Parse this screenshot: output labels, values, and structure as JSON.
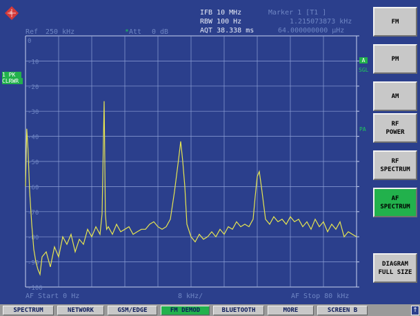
{
  "header": {
    "ref_label": "Ref",
    "ref_value": "250 kHz",
    "att_marker": "*",
    "att_label": "Att",
    "att_value": "0 dB",
    "ifb": "IFB 10 MHz",
    "rbw": "RBW 100 Hz",
    "aqt": "AQT 38.338 ms",
    "marker_title": "Marker 1 [T1 ]",
    "marker_freq": "1.215073873 kHz",
    "marker_level": "64.000000000 µHz"
  },
  "left_labels": {
    "trace_mode": "1 PK",
    "trace_clear": "CLRWR"
  },
  "right_labels": {
    "a_badge": "A",
    "sgl": "SGL",
    "pa": "PA"
  },
  "footer": {
    "start": "AF Start 0 Hz",
    "span": "8 kHz/",
    "stop": "AF Stop 80 kHz"
  },
  "chart_data": {
    "type": "line",
    "ytick_labels": [
      "0",
      "-10",
      "-20",
      "-30",
      "-40",
      "-50",
      "-60",
      "-70",
      "-80",
      "-90",
      "-100"
    ],
    "ylim": [
      -100,
      0
    ],
    "xlim": [
      0,
      80
    ],
    "x_unit": "kHz",
    "grid": true,
    "series": [
      {
        "x": [
          0,
          0.3,
          0.6,
          1,
          1.5,
          2,
          2.5,
          3,
          3.5,
          4,
          5,
          6,
          7,
          8,
          9,
          10,
          11,
          12,
          13,
          14,
          15,
          16,
          17,
          18,
          18.5,
          19,
          19.3,
          19.6,
          20,
          21,
          22,
          23,
          24,
          25,
          26,
          27,
          28,
          29,
          30,
          31,
          32,
          33,
          34,
          35,
          36,
          37,
          37.5,
          38,
          38.5,
          39,
          40,
          41,
          42,
          43,
          44,
          45,
          46,
          47,
          48,
          49,
          50,
          51,
          52,
          53,
          54,
          55,
          55.5,
          56,
          56.5,
          57,
          58,
          59,
          60,
          61,
          62,
          63,
          64,
          65,
          66,
          67,
          68,
          69,
          70,
          71,
          72,
          73,
          74,
          75,
          76,
          77,
          78,
          79,
          80
        ],
        "y": [
          -60,
          -37,
          -45,
          -62,
          -75,
          -85,
          -90,
          -93,
          -95,
          -88,
          -86,
          -92,
          -84,
          -88,
          -80,
          -83,
          -79,
          -86,
          -81,
          -83,
          -77,
          -80,
          -76,
          -79,
          -71,
          -26,
          -71,
          -77,
          -76,
          -79,
          -75,
          -78,
          -77,
          -76,
          -79,
          -78,
          -77,
          -77,
          -75,
          -74,
          -76,
          -77,
          -76,
          -73,
          -62,
          -49,
          -42,
          -50,
          -60,
          -75,
          -80,
          -82,
          -79,
          -81,
          -80,
          -78,
          -80,
          -77,
          -79,
          -76,
          -77,
          -74,
          -76,
          -75,
          -76,
          -73,
          -64,
          -56,
          -54,
          -60,
          -73,
          -75,
          -72,
          -74,
          -73,
          -75,
          -72,
          -74,
          -73,
          -76,
          -74,
          -77,
          -73,
          -76,
          -74,
          -78,
          -75,
          -77,
          -74,
          -80,
          -78,
          -79,
          -80
        ]
      }
    ]
  },
  "softkeys": [
    "FM",
    "PM",
    "AM",
    "RF\nPOWER",
    "RF\nSPECTRUM",
    "AF\nSPECTRUM",
    "DIAGRAM\nFULL SIZE"
  ],
  "active_softkey_index": 5,
  "hotkeys": [
    "SPECTRUM",
    "NETWORK",
    "GSM/EDGE",
    "FM DEMOD",
    "BLUETOOTH",
    "MORE",
    "SCREEN B"
  ],
  "active_hotkey_index": 3,
  "corner_icon": "up-arrow-icon",
  "colors": {
    "background": "#2b3f8c",
    "trace": "#e8e650",
    "grid": "#8fa2d8",
    "active_key": "#22b14c",
    "text_dim": "#6f86c4",
    "text_green": "#1ec95a"
  }
}
